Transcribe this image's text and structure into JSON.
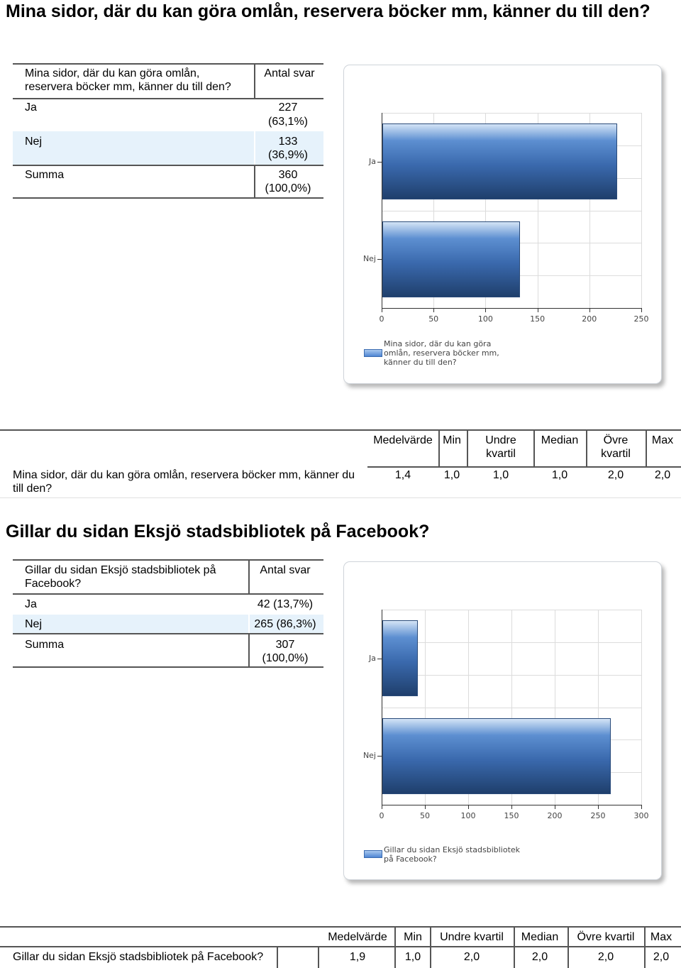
{
  "section1": {
    "heading": "Mina sidor, där du kan göra omlån, reservera böcker mm, känner du till den?",
    "table": {
      "question": "Mina sidor, där du kan göra omlån, reservera böcker mm, känner du till den?",
      "count_header": "Antal svar",
      "rows": [
        {
          "label": "Ja",
          "count": "227",
          "pct": "(63,1%)"
        },
        {
          "label": "Nej",
          "count": "133",
          "pct": "(36,9%)"
        },
        {
          "label": "Summa",
          "count": "360",
          "pct": "(100,0%)"
        }
      ]
    },
    "chart_data": {
      "type": "bar",
      "orientation": "horizontal",
      "categories": [
        "Ja",
        "Nej"
      ],
      "series": [
        {
          "name": "Mina sidor, där du kan göra omlån, reservera böcker mm, känner du till den?",
          "values": [
            227,
            133
          ]
        }
      ],
      "xlim": [
        0,
        250
      ],
      "xticks": [
        "0",
        "50",
        "100",
        "150",
        "200",
        "250"
      ],
      "grid": true,
      "legend": "bottom",
      "legend_lines": [
        "Mina sidor, där du kan göra",
        "omlån, reservera böcker mm,",
        "känner du till den?"
      ]
    },
    "stats": {
      "headers": [
        "Medelvärde",
        "Min",
        "Undre kvartil",
        "Median",
        "Övre kvartil",
        "Max"
      ],
      "row_label": "Mina sidor, där du kan göra omlån, reservera böcker mm, känner du till den?",
      "values": [
        "1,4",
        "1,0",
        "1,0",
        "1,0",
        "2,0",
        "2,0"
      ]
    }
  },
  "section2": {
    "heading": "Gillar du sidan Eksjö stadsbibliotek på Facebook?",
    "table": {
      "question": "Gillar du sidan Eksjö stadsbibliotek på Facebook?",
      "count_header": "Antal svar",
      "rows": [
        {
          "label": "Ja",
          "value": "42 (13,7%)"
        },
        {
          "label": "Nej",
          "value": "265 (86,3%)"
        },
        {
          "label": "Summa",
          "count": "307",
          "pct": "(100,0%)"
        }
      ]
    },
    "chart_data": {
      "type": "bar",
      "orientation": "horizontal",
      "categories": [
        "Ja",
        "Nej"
      ],
      "series": [
        {
          "name": "Gillar du sidan Eksjö stadsbibliotek på Facebook?",
          "values": [
            42,
            265
          ]
        }
      ],
      "xlim": [
        0,
        300
      ],
      "xticks": [
        "0",
        "50",
        "100",
        "150",
        "200",
        "250",
        "300"
      ],
      "grid": true,
      "legend": "bottom",
      "legend_lines": [
        "Gillar du sidan Eksjö stadsbibliotek",
        "på Facebook?"
      ]
    },
    "stats": {
      "headers": [
        "Medelvärde",
        "Min",
        "Undre kvartil",
        "Median",
        "Övre kvartil",
        "Max"
      ],
      "row_label": "Gillar du sidan Eksjö stadsbibliotek på Facebook?",
      "values": [
        "1,9",
        "1,0",
        "2,0",
        "2,0",
        "2,0",
        "2,0"
      ]
    }
  }
}
